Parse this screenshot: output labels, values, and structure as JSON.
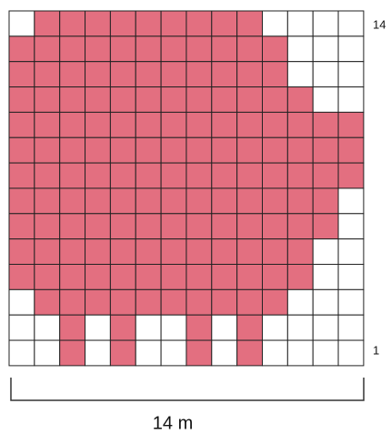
{
  "labels": {
    "top_row": "14",
    "bottom_row": "1",
    "width": "14 m"
  }
}
